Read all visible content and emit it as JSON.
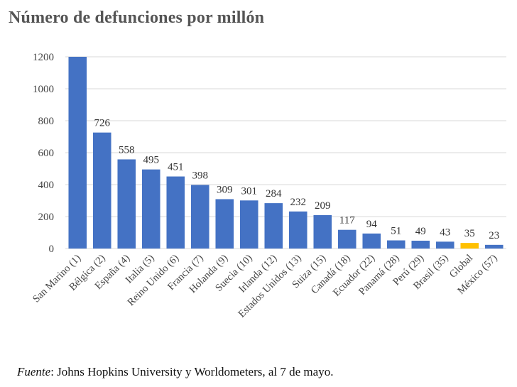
{
  "title": "Número de defunciones por millón",
  "chart_data": {
    "type": "bar",
    "categories": [
      "San Marino (1)",
      "Bélgica (2)",
      "España (4)",
      "Italia (5)",
      "Reino Unido (6)",
      "Francia (7)",
      "Holanda (9)",
      "Suecia (10)",
      "Irlanda (12)",
      "Estados Unidos (13)",
      "Suiza (15)",
      "Canadá (18)",
      "Ecuador (22)",
      "Panamá (28)",
      "Perú (29)",
      "Brasil (35)",
      "Global",
      "México (57)"
    ],
    "values": [
      1200,
      726,
      558,
      495,
      451,
      398,
      309,
      301,
      284,
      232,
      209,
      117,
      94,
      51,
      49,
      43,
      35,
      23
    ],
    "data_labels": [
      "",
      "726",
      "558",
      "495",
      "451",
      "398",
      "309",
      "301",
      "284",
      "232",
      "209",
      "117",
      "94",
      "51",
      "49",
      "43",
      "35",
      "23"
    ],
    "highlight_category": "Global",
    "colors": {
      "bar": "#4472C4",
      "highlight": "#FFC000",
      "grid": "#D9D9D9"
    },
    "yticks": [
      "0",
      "200",
      "400",
      "600",
      "800",
      "1000",
      "1200"
    ],
    "ylim": [
      0,
      1200
    ],
    "grid": true,
    "legend": "none"
  },
  "source": {
    "label": "Fuente",
    "text": ": Johns Hopkins University y Worldometers, al 7 de mayo."
  }
}
